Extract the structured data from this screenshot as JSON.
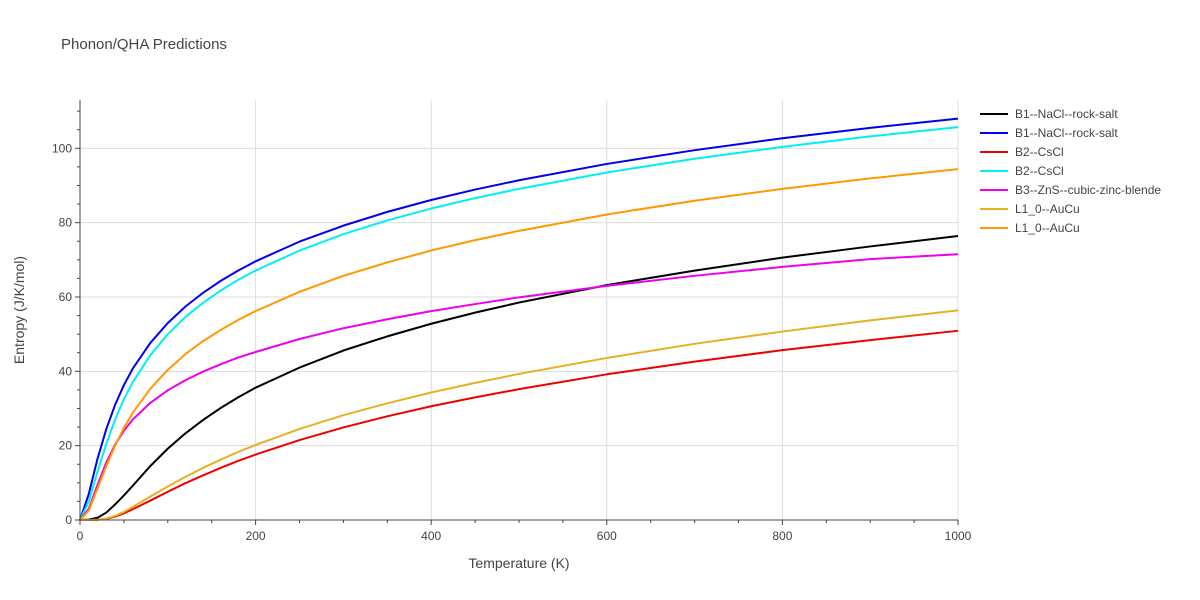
{
  "chart_data": {
    "type": "line",
    "title": "Phonon/QHA Predictions",
    "xlabel": "Temperature (K)",
    "ylabel": "Entropy (J/K/mol)",
    "xlim": [
      0,
      1000
    ],
    "ylim": [
      0,
      113
    ],
    "xticks": [
      0,
      200,
      400,
      600,
      800,
      1000
    ],
    "yticks": [
      0,
      20,
      40,
      60,
      80,
      100
    ],
    "grid": true,
    "legend_position": "right",
    "series": [
      {
        "name": "B1--NaCl--rock-salt",
        "color": "#000000",
        "x": [
          0,
          10,
          20,
          30,
          40,
          50,
          60,
          80,
          100,
          120,
          140,
          160,
          180,
          200,
          250,
          300,
          350,
          400,
          450,
          500,
          600,
          700,
          800,
          900,
          1000
        ],
        "y": [
          0,
          0.1,
          0.6,
          2.0,
          4.2,
          6.6,
          9.2,
          14.5,
          19.2,
          23.3,
          26.9,
          30.1,
          33.0,
          35.6,
          41.0,
          45.6,
          49.4,
          52.8,
          55.8,
          58.5,
          63.2,
          67.1,
          70.6,
          73.6,
          76.4
        ]
      },
      {
        "name": "B1--NaCl--rock-salt",
        "color": "#0000ee",
        "x": [
          0,
          10,
          20,
          30,
          40,
          50,
          60,
          80,
          100,
          120,
          140,
          160,
          180,
          200,
          250,
          300,
          350,
          400,
          450,
          500,
          600,
          700,
          800,
          900,
          1000
        ],
        "y": [
          0,
          7.0,
          16.5,
          24.5,
          31.0,
          36.3,
          40.7,
          47.6,
          53.0,
          57.4,
          61.1,
          64.3,
          67.1,
          69.6,
          74.9,
          79.2,
          82.9,
          86.1,
          88.9,
          91.4,
          95.8,
          99.5,
          102.7,
          105.5,
          108.0
        ]
      },
      {
        "name": "B2--CsCl",
        "color": "#ee0000",
        "x": [
          0,
          10,
          20,
          30,
          40,
          50,
          60,
          80,
          100,
          120,
          140,
          160,
          180,
          200,
          250,
          300,
          350,
          400,
          450,
          500,
          600,
          700,
          800,
          900,
          1000
        ],
        "y": [
          0,
          0,
          0.05,
          0.3,
          0.9,
          1.8,
          2.9,
          5.2,
          7.6,
          9.9,
          12.0,
          14.0,
          15.9,
          17.6,
          21.5,
          24.9,
          27.9,
          30.6,
          33.0,
          35.2,
          39.2,
          42.6,
          45.7,
          48.4,
          50.9
        ]
      },
      {
        "name": "B2--CsCl",
        "color": "#00f0f0",
        "x": [
          0,
          10,
          20,
          30,
          40,
          50,
          60,
          80,
          100,
          120,
          140,
          160,
          180,
          200,
          250,
          300,
          350,
          400,
          450,
          500,
          600,
          700,
          800,
          900,
          1000
        ],
        "y": [
          0,
          5.0,
          13.0,
          20.5,
          27.0,
          32.5,
          37.0,
          44.3,
          50.0,
          54.6,
          58.4,
          61.7,
          64.6,
          67.1,
          72.5,
          76.9,
          80.6,
          83.8,
          86.6,
          89.1,
          93.5,
          97.2,
          100.4,
          103.2,
          105.7
        ]
      },
      {
        "name": "B3--ZnS--cubic-zinc-blende",
        "color": "#ee00ee",
        "x": [
          0,
          10,
          20,
          30,
          40,
          50,
          60,
          80,
          100,
          120,
          140,
          160,
          180,
          200,
          250,
          300,
          350,
          400,
          450,
          500,
          600,
          700,
          800,
          900,
          1000
        ],
        "y": [
          0,
          3.0,
          9.5,
          15.5,
          20.3,
          24.0,
          27.0,
          31.5,
          34.9,
          37.6,
          39.9,
          41.9,
          43.7,
          45.2,
          48.7,
          51.6,
          54.0,
          56.2,
          58.1,
          59.9,
          63.0,
          65.7,
          68.1,
          70.2,
          71.5
        ]
      },
      {
        "name": "L1_0--AuCu",
        "color": "#e6b020",
        "x": [
          0,
          10,
          20,
          30,
          40,
          50,
          60,
          80,
          100,
          120,
          140,
          160,
          180,
          200,
          250,
          300,
          350,
          400,
          450,
          500,
          600,
          700,
          800,
          900,
          1000
        ],
        "y": [
          0,
          0,
          0.05,
          0.4,
          1.1,
          2.2,
          3.5,
          6.3,
          9.0,
          11.6,
          14.0,
          16.2,
          18.3,
          20.2,
          24.5,
          28.2,
          31.4,
          34.3,
          36.9,
          39.3,
          43.6,
          47.4,
          50.7,
          53.7,
          56.4
        ]
      },
      {
        "name": "L1_0--AuCu",
        "color": "#ff9900",
        "x": [
          0,
          10,
          20,
          30,
          40,
          50,
          60,
          80,
          100,
          120,
          140,
          160,
          180,
          200,
          250,
          300,
          350,
          400,
          450,
          500,
          600,
          700,
          800,
          900,
          1000
        ],
        "y": [
          0,
          2.5,
          8.5,
          14.5,
          20.0,
          24.8,
          28.8,
          35.3,
          40.4,
          44.6,
          48.1,
          51.1,
          53.8,
          56.2,
          61.4,
          65.7,
          69.3,
          72.5,
          75.3,
          77.8,
          82.2,
          85.9,
          89.1,
          91.9,
          94.4
        ]
      }
    ]
  }
}
